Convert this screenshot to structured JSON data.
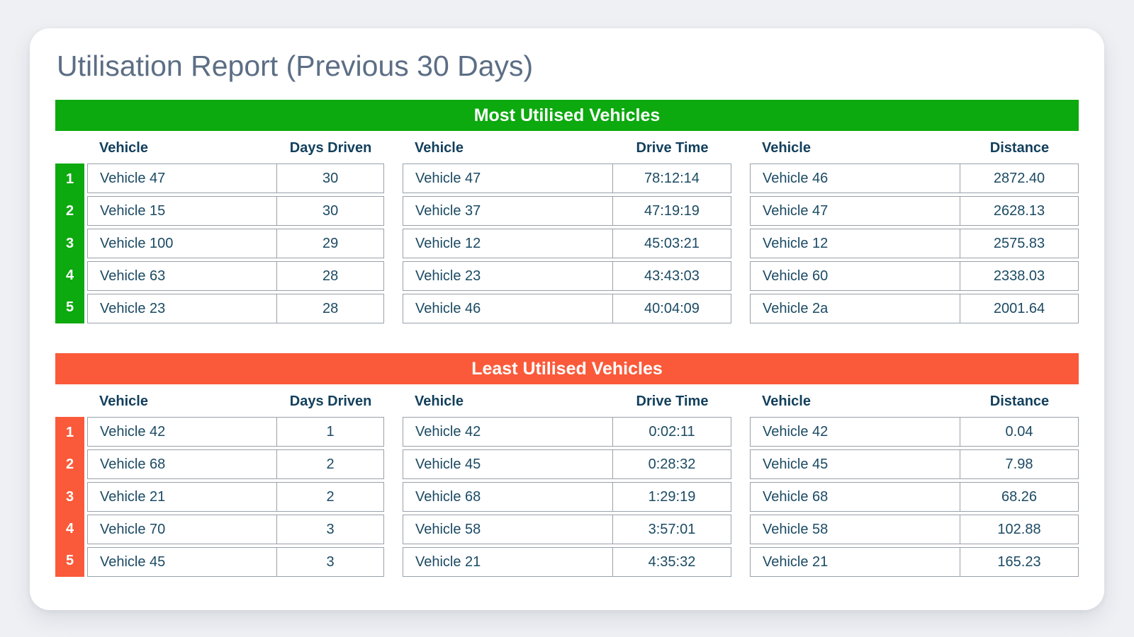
{
  "report": {
    "title": "Utilisation Report (Previous 30 Days)"
  },
  "colors": {
    "most_accent": "#0ca90f",
    "least_accent": "#fa5a3a",
    "title_text": "#5c6e85",
    "header_text": "#123f5c",
    "cell_text": "#1b4a63",
    "table_border": "#99a1ab",
    "card_background": "#ffffff",
    "page_background": "#eef0f4"
  },
  "sections": [
    {
      "id": "most-utilised",
      "title": "Most Utilised Vehicles",
      "accent": "#0ca90f",
      "ranks": [
        "1",
        "2",
        "3",
        "4",
        "5"
      ],
      "tables": [
        {
          "columns": [
            "Vehicle",
            "Days Driven"
          ],
          "rows": [
            [
              "Vehicle 47",
              "30"
            ],
            [
              "Vehicle 15",
              "30"
            ],
            [
              "Vehicle 100",
              "29"
            ],
            [
              "Vehicle 63",
              "28"
            ],
            [
              "Vehicle 23",
              "28"
            ]
          ]
        },
        {
          "columns": [
            "Vehicle",
            "Drive Time"
          ],
          "rows": [
            [
              "Vehicle 47",
              "78:12:14"
            ],
            [
              "Vehicle 37",
              "47:19:19"
            ],
            [
              "Vehicle 12",
              "45:03:21"
            ],
            [
              "Vehicle 23",
              "43:43:03"
            ],
            [
              "Vehicle 46",
              "40:04:09"
            ]
          ]
        },
        {
          "columns": [
            "Vehicle",
            "Distance"
          ],
          "rows": [
            [
              "Vehicle 46",
              "2872.40"
            ],
            [
              "Vehicle 47",
              "2628.13"
            ],
            [
              "Vehicle 12",
              "2575.83"
            ],
            [
              "Vehicle 60",
              "2338.03"
            ],
            [
              "Vehicle 2a",
              "2001.64"
            ]
          ]
        }
      ]
    },
    {
      "id": "least-utilised",
      "title": "Least Utilised Vehicles",
      "accent": "#fa5a3a",
      "ranks": [
        "1",
        "2",
        "3",
        "4",
        "5"
      ],
      "tables": [
        {
          "columns": [
            "Vehicle",
            "Days Driven"
          ],
          "rows": [
            [
              "Vehicle 42",
              "1"
            ],
            [
              "Vehicle 68",
              "2"
            ],
            [
              "Vehicle 21",
              "2"
            ],
            [
              "Vehicle 70",
              "3"
            ],
            [
              "Vehicle 45",
              "3"
            ]
          ]
        },
        {
          "columns": [
            "Vehicle",
            "Drive Time"
          ],
          "rows": [
            [
              "Vehicle 42",
              "0:02:11"
            ],
            [
              "Vehicle 45",
              "0:28:32"
            ],
            [
              "Vehicle 68",
              "1:29:19"
            ],
            [
              "Vehicle 58",
              "3:57:01"
            ],
            [
              "Vehicle 21",
              "4:35:32"
            ]
          ]
        },
        {
          "columns": [
            "Vehicle",
            "Distance"
          ],
          "rows": [
            [
              "Vehicle 42",
              "0.04"
            ],
            [
              "Vehicle 45",
              "7.98"
            ],
            [
              "Vehicle 68",
              "68.26"
            ],
            [
              "Vehicle 58",
              "102.88"
            ],
            [
              "Vehicle 21",
              "165.23"
            ]
          ]
        }
      ]
    }
  ]
}
